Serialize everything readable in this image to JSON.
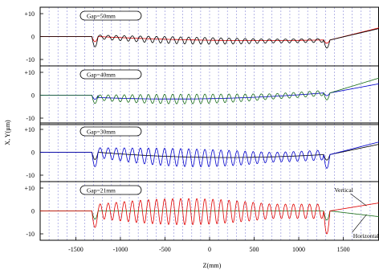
{
  "chart_data": {
    "type": "line",
    "xlabel": "Z(mm)",
    "ylabel": "X, Y(µm)",
    "xlim": [
      -1900,
      1900
    ],
    "ylim": [
      -10,
      10
    ],
    "x_ticks": [
      -1500,
      -1000,
      -500,
      0,
      500,
      1000,
      1500
    ],
    "x_tick_labels": [
      "-1500",
      "-1000",
      "-500",
      "0",
      "500",
      "1000",
      "1500"
    ],
    "y_ticks": [
      10,
      0,
      -10
    ],
    "y_tick_labels": [
      "+10",
      "0",
      "-10"
    ],
    "grid": "vertical dashed every 100 mm",
    "colors": {
      "red": "#e00000",
      "black": "#000000",
      "green": "#1a6e1a",
      "blue": "#0000cc",
      "grid": "#8a8ad8",
      "frame": "#000000"
    },
    "panels": [
      {
        "label": "Gap=50mm",
        "oscillating_color": "black",
        "smooth_color": "red",
        "periods": 28,
        "amplitude": [
          -3,
          2
        ],
        "entry_dip": -5,
        "exit_dip": -3.5,
        "drift": [
          0,
          -2.5,
          -1.5
        ],
        "exit_levels": {
          "oscillating": 3.5,
          "smooth": 3.8
        }
      },
      {
        "label": "Gap=40mm",
        "oscillating_color": "green",
        "smooth_color": "blue",
        "periods": 28,
        "amplitude": [
          -3.5,
          3.5
        ],
        "entry_dip": -4,
        "exit_dip": -3,
        "drift": [
          -1,
          -3,
          1
        ],
        "exit_levels": {
          "oscillating": 7.5,
          "smooth": 5
        }
      },
      {
        "label": "Gap=30mm",
        "oscillating_color": "blue",
        "smooth_color": "black",
        "periods": 28,
        "amplitude": [
          -7,
          6
        ],
        "entry_dip": -7,
        "exit_dip": -6,
        "drift": [
          0,
          -4,
          -1
        ],
        "exit_levels": {
          "oscillating": 4.5,
          "smooth": 3.5
        }
      },
      {
        "label": "Gap=21mm",
        "oscillating_color": "red",
        "smooth_color": "green",
        "periods": 28,
        "amplitude": [
          -10,
          9
        ],
        "entry_dip": -8,
        "exit_dip": -10,
        "drift": [
          0,
          0,
          0
        ],
        "exit_levels": {
          "oscillating": 3.5,
          "smooth": -2.5
        },
        "legend": [
          {
            "label": "Vertical",
            "series": "oscillating"
          },
          {
            "label": "Horizontal",
            "series": "smooth"
          }
        ]
      }
    ]
  }
}
